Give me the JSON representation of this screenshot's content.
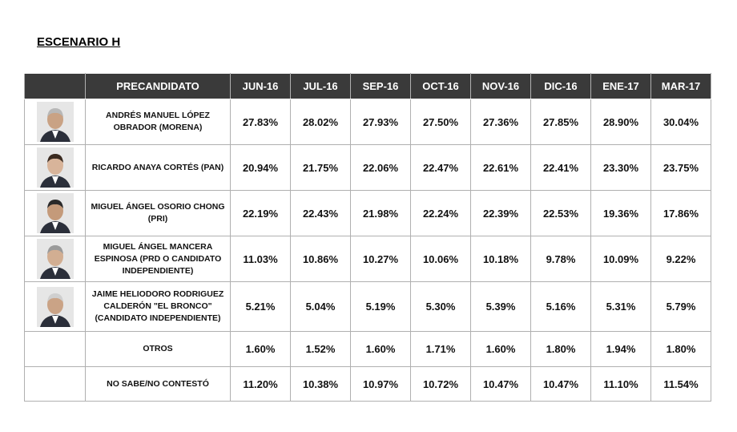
{
  "title": "ESCENARIO H",
  "table": {
    "header": [
      "PRECANDIDATO",
      "JUN-16",
      "JUL-16",
      "SEP-16",
      "OCT-16",
      "NOV-16",
      "DIC-16",
      "ENE-17",
      "MAR-17"
    ],
    "rows": [
      [
        "ANDRÉS MANUEL LÓPEZ OBRADOR (MORENA)",
        "27.83%",
        "28.02%",
        "27.93%",
        "27.50%",
        "27.36%",
        "27.85%",
        "28.90%",
        "30.04%"
      ],
      [
        "RICARDO ANAYA CORTÉS (PAN)",
        "20.94%",
        "21.75%",
        "22.06%",
        "22.47%",
        "22.61%",
        "22.41%",
        "23.30%",
        "23.75%"
      ],
      [
        "MIGUEL ÁNGEL OSORIO CHONG (PRI)",
        "22.19%",
        "22.43%",
        "21.98%",
        "22.24%",
        "22.39%",
        "22.53%",
        "19.36%",
        "17.86%"
      ],
      [
        "MIGUEL ÁNGEL MANCERA ESPINOSA (PRD O CANDIDATO INDEPENDIENTE)",
        "11.03%",
        "10.86%",
        "10.27%",
        "10.06%",
        "10.18%",
        "9.78%",
        "10.09%",
        "9.22%"
      ],
      [
        "JAIME HELIODORO RODRIGUEZ CALDERÓN \"EL BRONCO\" (CANDIDATO INDEPENDIENTE)",
        "5.21%",
        "5.04%",
        "5.19%",
        "5.30%",
        "5.39%",
        "5.16%",
        "5.31%",
        "5.79%"
      ],
      [
        "OTROS",
        "1.60%",
        "1.52%",
        "1.60%",
        "1.71%",
        "1.60%",
        "1.80%",
        "1.94%",
        "1.80%"
      ],
      [
        "NO SABE/NO CONTESTÓ",
        "11.20%",
        "10.38%",
        "10.97%",
        "10.72%",
        "10.47%",
        "10.47%",
        "11.10%",
        "11.54%"
      ]
    ]
  }
}
